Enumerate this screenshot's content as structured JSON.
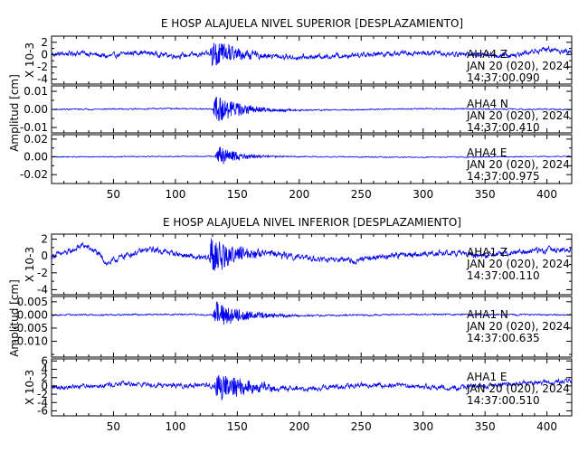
{
  "chart_data": [
    {
      "type": "line",
      "title": "E HOSP ALAJUELA NIVEL SUPERIOR [DESPLAZAMIENTO]",
      "ylabel": "Amplitud [cm]",
      "xlim": [
        0,
        420
      ],
      "x_ticks": [
        50,
        100,
        150,
        200,
        250,
        300,
        350,
        400
      ],
      "x_ticklabels": [
        "50",
        "100",
        "150",
        "200",
        "250",
        "300",
        "350",
        "400"
      ],
      "line_color": "#0000ee",
      "traces": [
        {
          "id": "sup-z",
          "scale_label": "X 10-3",
          "ylim": [
            -4.8,
            3.0
          ],
          "yticks": [
            2,
            1,
            0,
            -1,
            -2,
            -3,
            -4
          ],
          "ytick_labels": [
            "2",
            "",
            "0",
            "",
            "-2",
            "",
            "-4"
          ],
          "station": "AHA4 Z",
          "date": "JAN 20 (020), 2024",
          "time": "14:37:00.090",
          "noise_amp": 0.35,
          "drift_amp": 0.5,
          "event_start": 127,
          "event_peak": 2.6,
          "event_decay": 18,
          "drift": [
            [
              0,
              0.0
            ],
            [
              25,
              0.3
            ],
            [
              45,
              -0.3
            ],
            [
              70,
              0.4
            ],
            [
              100,
              -0.2
            ],
            [
              140,
              0.2
            ],
            [
              200,
              -0.5
            ],
            [
              260,
              0.1
            ],
            [
              300,
              0.3
            ],
            [
              340,
              0.0
            ],
            [
              370,
              -0.2
            ],
            [
              400,
              0.9
            ],
            [
              420,
              0.4
            ]
          ]
        },
        {
          "id": "sup-n",
          "scale_label": "",
          "ylim": [
            -0.013,
            0.013
          ],
          "yticks": [
            0.01,
            0.005,
            0.0,
            -0.005,
            -0.01
          ],
          "ytick_labels": [
            "0.01",
            "",
            "0.00",
            "",
            "-0.01"
          ],
          "station": "AHA4 N",
          "date": "JAN 20 (020), 2024",
          "time": "14:37:00.410",
          "noise_amp": 0.0003,
          "drift_amp": 0.0004,
          "event_start": 130,
          "event_peak": 0.0085,
          "event_decay": 20,
          "drift": [
            [
              0,
              0.0
            ],
            [
              100,
              0.0004
            ],
            [
              200,
              -0.0005
            ],
            [
              300,
              0.0003
            ],
            [
              420,
              0.0
            ]
          ]
        },
        {
          "id": "sup-e",
          "scale_label": "",
          "ylim": [
            -0.03,
            0.025
          ],
          "yticks": [
            0.02,
            0.01,
            0.0,
            -0.01,
            -0.02
          ],
          "ytick_labels": [
            "0.02",
            "",
            "0.00",
            "",
            "-0.02"
          ],
          "station": "AHA4 E",
          "date": "JAN 20 (020), 2024",
          "time": "14:37:00.975",
          "noise_amp": 0.0005,
          "drift_amp": 0.0006,
          "event_start": 132,
          "event_peak": 0.012,
          "event_decay": 16,
          "drift": [
            [
              0,
              0.0
            ],
            [
              150,
              0.0007
            ],
            [
              300,
              -0.0005
            ],
            [
              420,
              0.0006
            ]
          ]
        }
      ]
    },
    {
      "type": "line",
      "title": "E HOSP ALAJUELA NIVEL INFERIOR [DESPLAZAMIENTO]",
      "ylabel": "Amplitud [cm]",
      "xlim": [
        0,
        420
      ],
      "x_ticks": [
        50,
        100,
        150,
        200,
        250,
        300,
        350,
        400
      ],
      "x_ticklabels": [
        "50",
        "100",
        "150",
        "200",
        "250",
        "300",
        "350",
        "400"
      ],
      "line_color": "#0000ee",
      "traces": [
        {
          "id": "inf-z",
          "scale_label": "X 10-3",
          "ylim": [
            -4.6,
            2.6
          ],
          "yticks": [
            2,
            1,
            0,
            -1,
            -2,
            -3,
            -4
          ],
          "ytick_labels": [
            "2",
            "",
            "0",
            "",
            "-2",
            "",
            "-4"
          ],
          "station": "AHA1 Z",
          "date": "JAN 20 (020), 2024",
          "time": "14:37:00.110",
          "noise_amp": 0.3,
          "drift_amp": 0.6,
          "event_start": 126,
          "event_peak": 2.3,
          "event_decay": 22,
          "drift": [
            [
              0,
              0.0
            ],
            [
              15,
              0.5
            ],
            [
              25,
              1.3
            ],
            [
              35,
              0.6
            ],
            [
              45,
              -0.9
            ],
            [
              60,
              0.1
            ],
            [
              80,
              0.8
            ],
            [
              100,
              0.3
            ],
            [
              120,
              -0.3
            ],
            [
              170,
              0.5
            ],
            [
              200,
              -0.2
            ],
            [
              240,
              -0.6
            ],
            [
              280,
              0.1
            ],
            [
              320,
              0.4
            ],
            [
              350,
              0.0
            ],
            [
              380,
              0.5
            ],
            [
              420,
              0.9
            ]
          ]
        },
        {
          "id": "inf-n",
          "scale_label": "",
          "ylim": [
            -0.016,
            0.007
          ],
          "yticks": [
            0.005,
            0.0,
            -0.005,
            -0.01,
            -0.015
          ],
          "ytick_labels": [
            "0.005",
            "0.000",
            "-0.005",
            "-0.010",
            ""
          ],
          "station": "AHA1 N",
          "date": "JAN 20 (020), 2024",
          "time": "14:37:00.635",
          "noise_amp": 0.00025,
          "drift_amp": 0.0003,
          "event_start": 130,
          "event_peak": 0.0055,
          "event_decay": 22,
          "drift": [
            [
              0,
              0.0
            ],
            [
              100,
              0.0002
            ],
            [
              200,
              -0.0003
            ],
            [
              300,
              0.0002
            ],
            [
              420,
              0.0
            ]
          ]
        },
        {
          "id": "inf-e",
          "scale_label": "X 10-3",
          "ylim": [
            -7.2,
            6.5
          ],
          "yticks": [
            6,
            4,
            2,
            0,
            -2,
            -4,
            -6
          ],
          "ytick_labels": [
            "6",
            "4",
            "2",
            "0",
            "-2",
            "-4",
            "-6"
          ],
          "station": "AHA1 E",
          "date": "JAN 20 (020), 2024",
          "time": "14:37:00.510",
          "noise_amp": 0.5,
          "drift_amp": 0.9,
          "event_start": 131,
          "event_peak": 4.2,
          "event_decay": 24,
          "drift": [
            [
              0,
              -0.4
            ],
            [
              60,
              0.5
            ],
            [
              120,
              0.0
            ],
            [
              200,
              -0.8
            ],
            [
              260,
              0.3
            ],
            [
              320,
              -0.5
            ],
            [
              380,
              0.6
            ],
            [
              420,
              1.0
            ]
          ]
        }
      ]
    }
  ]
}
